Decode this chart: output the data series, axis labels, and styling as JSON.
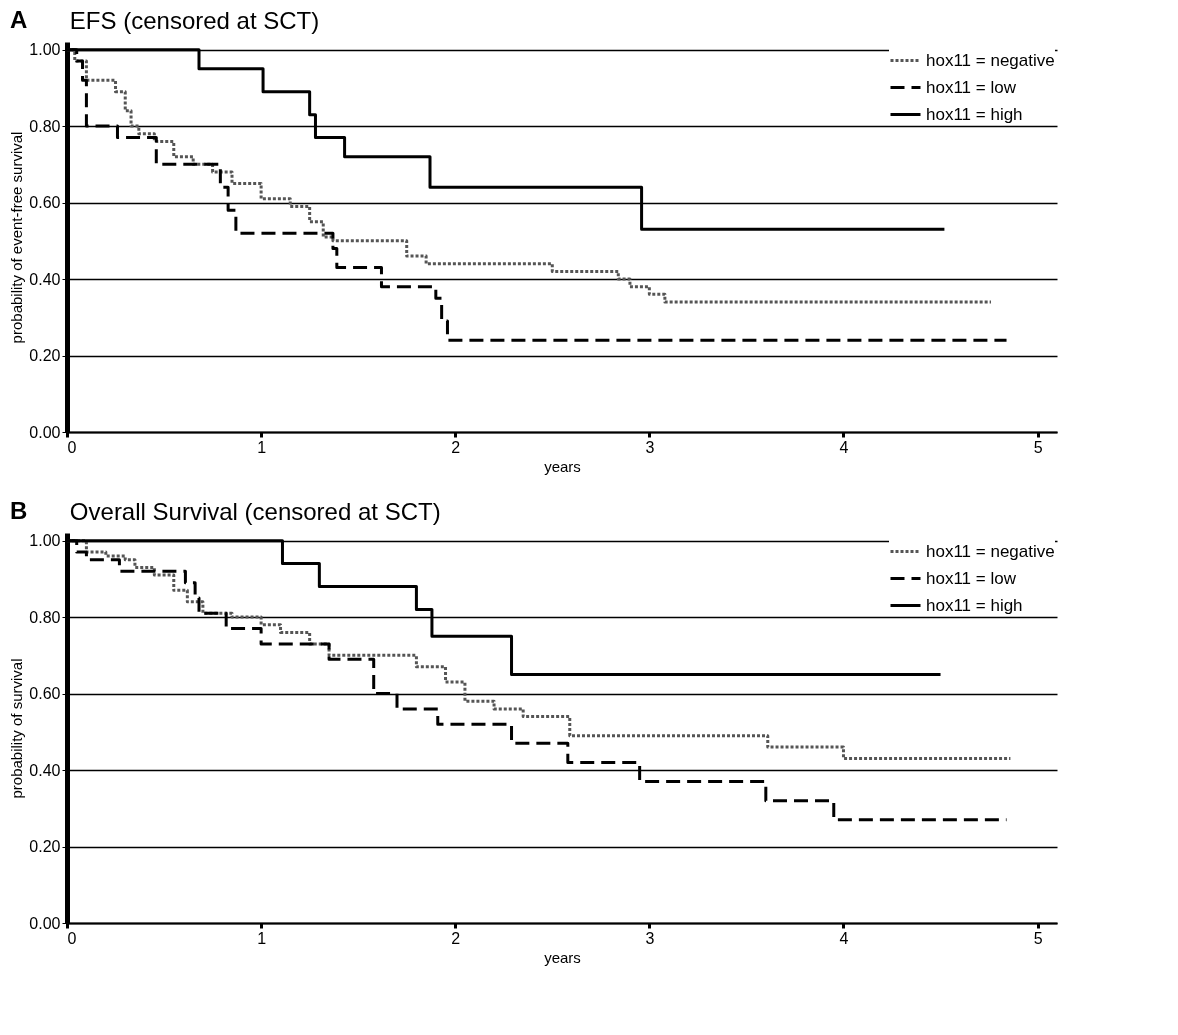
{
  "chart_data": [
    {
      "type": "step",
      "title": "EFS (censored at SCT)",
      "xlabel": "years",
      "ylabel": "probability of event-free survival",
      "annotations": [
        "A"
      ],
      "legend": "top right",
      "grid": "y",
      "xlim": [
        0,
        5.1
      ],
      "xticks": [
        0,
        1,
        2,
        3,
        4,
        5
      ],
      "ylim": [
        0,
        1.02
      ],
      "yticks": [
        {
          "value": 0,
          "label": "0.00"
        },
        {
          "value": 0.2,
          "label": "0.20"
        },
        {
          "value": 0.4,
          "label": "0.40"
        },
        {
          "value": 0.6,
          "label": "0.60"
        },
        {
          "value": 0.8,
          "label": "0.80"
        },
        {
          "value": 1,
          "label": "1.00"
        }
      ],
      "series": [
        {
          "name": "hox11 = negative",
          "color": "#555555",
          "line_style": "dotted",
          "x": [
            0,
            0.04,
            0.1,
            0.25,
            0.3,
            0.33,
            0.37,
            0.45,
            0.55,
            0.65,
            0.75,
            0.85,
            1.0,
            1.15,
            1.25,
            1.32,
            1.37,
            1.75,
            1.85,
            2.5,
            2.84,
            2.9,
            3.0,
            3.08,
            4.76
          ],
          "values": [
            1,
            0.97,
            0.92,
            0.89,
            0.84,
            0.8,
            0.78,
            0.76,
            0.72,
            0.7,
            0.68,
            0.65,
            0.61,
            0.59,
            0.55,
            0.51,
            0.5,
            0.46,
            0.44,
            0.42,
            0.4,
            0.38,
            0.36,
            0.34,
            0.34
          ]
        },
        {
          "name": "hox11 = low",
          "color": "#000000",
          "line_style": "dashed",
          "x": [
            0,
            0.05,
            0.08,
            0.1,
            0.26,
            0.46,
            0.79,
            0.83,
            0.87,
            1.37,
            1.39,
            1.62,
            1.9,
            1.93,
            1.96,
            4.84
          ],
          "values": [
            1,
            0.97,
            0.92,
            0.8,
            0.77,
            0.7,
            0.64,
            0.58,
            0.52,
            0.48,
            0.43,
            0.38,
            0.35,
            0.29,
            0.24,
            0.24
          ]
        },
        {
          "name": "hox11 = high",
          "color": "#000000",
          "line_style": "solid",
          "x": [
            0,
            0.68,
            1.01,
            1.25,
            1.28,
            1.43,
            1.87,
            2.96,
            4.52
          ],
          "values": [
            1,
            0.95,
            0.89,
            0.83,
            0.77,
            0.72,
            0.64,
            0.53,
            0.53
          ]
        }
      ]
    },
    {
      "type": "step",
      "title": "Overall Survival (censored at SCT)",
      "xlabel": "years",
      "ylabel": "probability of survival",
      "annotations": [
        "B"
      ],
      "legend": "top right",
      "grid": "y",
      "xlim": [
        0,
        5.1
      ],
      "xticks": [
        0,
        1,
        2,
        3,
        4,
        5
      ],
      "ylim": [
        0,
        1.02
      ],
      "yticks": [
        {
          "value": 0,
          "label": "0.00"
        },
        {
          "value": 0.2,
          "label": "0.20"
        },
        {
          "value": 0.4,
          "label": "0.40"
        },
        {
          "value": 0.6,
          "label": "0.60"
        },
        {
          "value": 0.8,
          "label": "0.80"
        },
        {
          "value": 1,
          "label": "1.00"
        }
      ],
      "series": [
        {
          "name": "hox11 = negative",
          "color": "#555555",
          "line_style": "dotted",
          "x": [
            0,
            0.1,
            0.2,
            0.3,
            0.35,
            0.45,
            0.55,
            0.62,
            0.7,
            0.85,
            1.0,
            1.1,
            1.25,
            1.35,
            1.8,
            1.95,
            2.05,
            2.2,
            2.35,
            2.59,
            3.61,
            4.0,
            4.86
          ],
          "values": [
            1,
            0.97,
            0.96,
            0.95,
            0.93,
            0.91,
            0.87,
            0.84,
            0.81,
            0.8,
            0.78,
            0.76,
            0.73,
            0.7,
            0.67,
            0.63,
            0.58,
            0.56,
            0.54,
            0.49,
            0.46,
            0.43,
            0.43
          ]
        },
        {
          "name": "hox11 = low",
          "color": "#000000",
          "line_style": "dashed",
          "x": [
            0,
            0.05,
            0.1,
            0.27,
            0.61,
            0.66,
            0.68,
            0.82,
            1.0,
            1.35,
            1.58,
            1.7,
            1.91,
            2.29,
            2.58,
            2.95,
            3.6,
            3.95,
            4.84
          ],
          "values": [
            1,
            0.97,
            0.95,
            0.92,
            0.89,
            0.85,
            0.81,
            0.77,
            0.73,
            0.69,
            0.6,
            0.56,
            0.52,
            0.47,
            0.42,
            0.37,
            0.32,
            0.27,
            0.27
          ]
        },
        {
          "name": "hox11 = high",
          "color": "#000000",
          "line_style": "solid",
          "x": [
            0,
            1.11,
            1.3,
            1.8,
            1.88,
            2.29,
            4.5
          ],
          "values": [
            1,
            0.94,
            0.88,
            0.82,
            0.75,
            0.65,
            0.65
          ]
        }
      ]
    }
  ]
}
